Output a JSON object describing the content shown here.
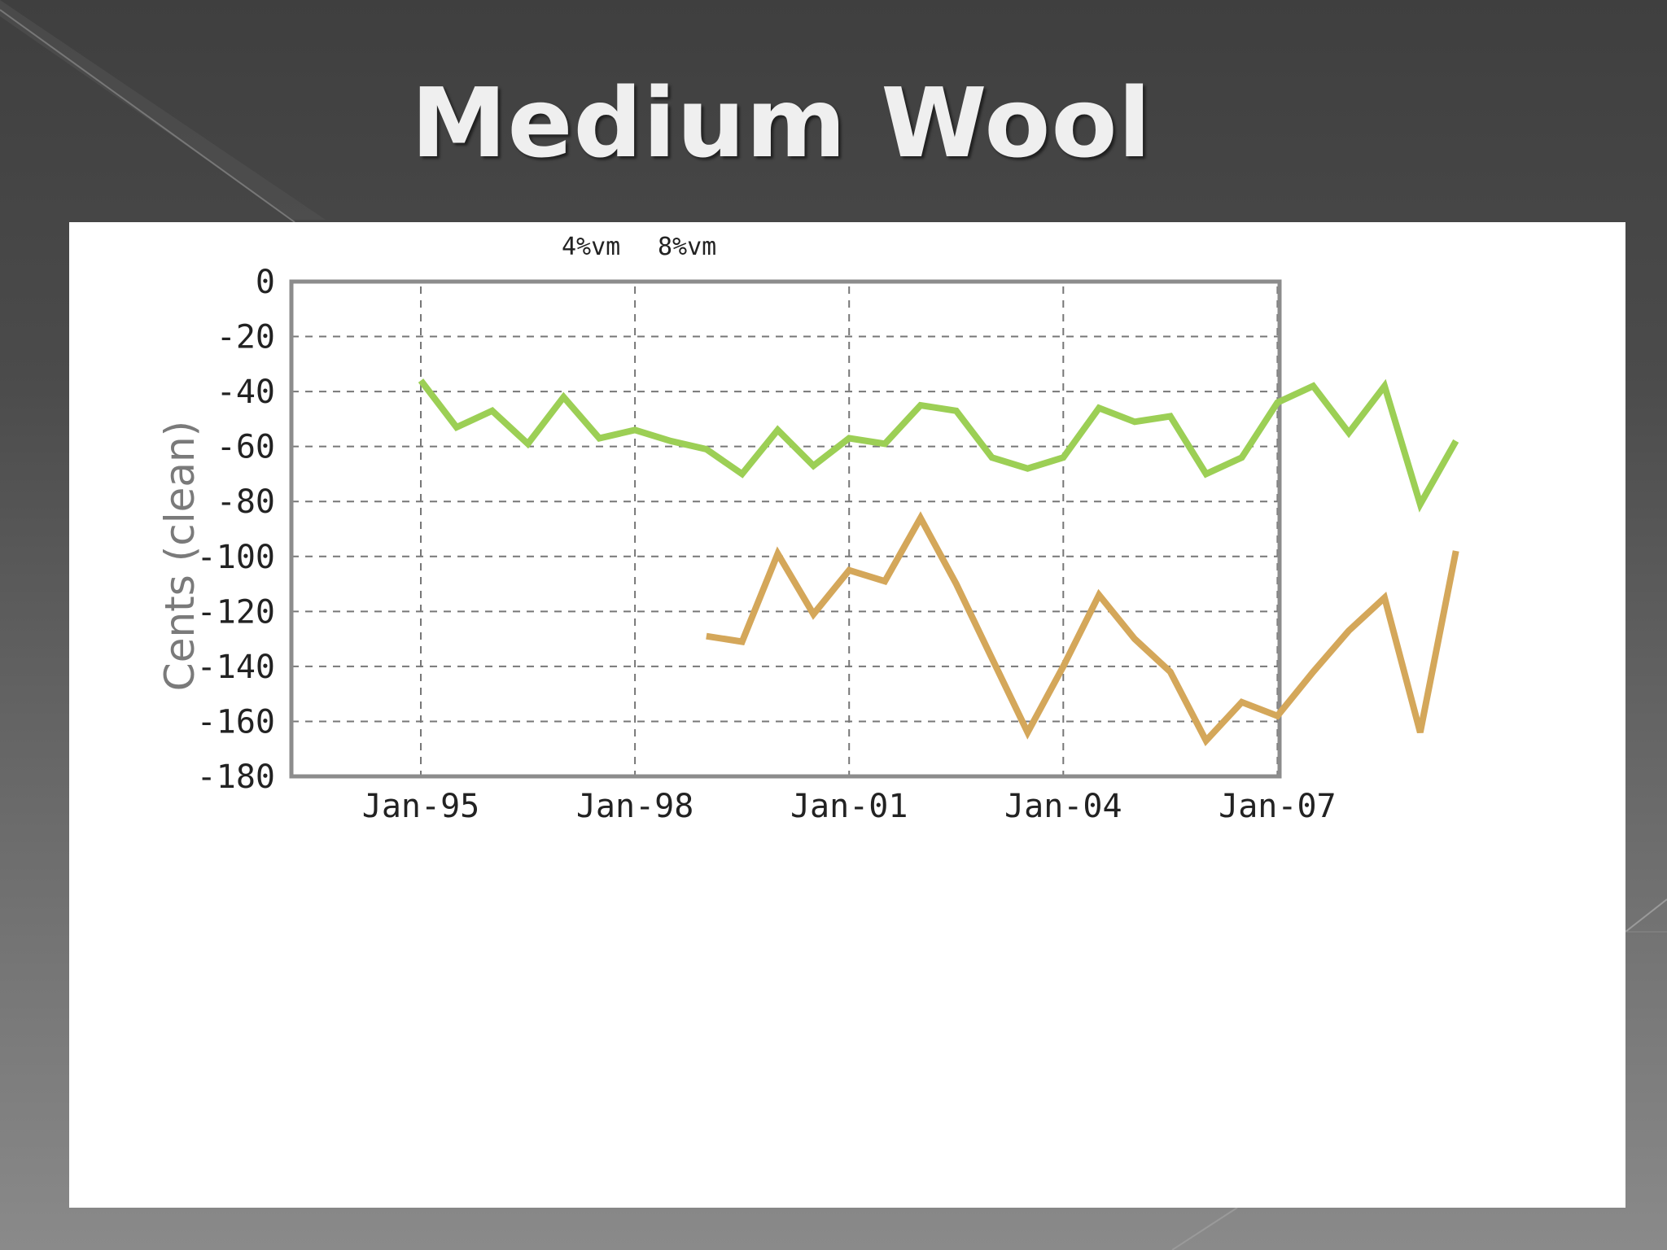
{
  "slide": {
    "title": "Medium Wool"
  },
  "chart_data": {
    "type": "line",
    "title": "",
    "xlabel": "",
    "ylabel": "Cents (clean)",
    "ylim": [
      -180,
      0
    ],
    "yticks": [
      0,
      -20,
      -40,
      -60,
      -80,
      -100,
      -120,
      -140,
      -160,
      -180
    ],
    "xticks": [
      "Jan-95",
      "Jan-98",
      "Jan-01",
      "Jan-04",
      "Jan-07"
    ],
    "x_unit": "half-year periods starting Jan-95",
    "grid": true,
    "legend_position": "top-center",
    "colors": {
      "4%vm": "#9ccf55",
      "8%vm": "#d4a75a"
    },
    "x": [
      "Jan-95",
      "Jul-95",
      "Jan-96",
      "Jul-96",
      "Jan-97",
      "Jul-97",
      "Jan-98",
      "Jul-98",
      "Jan-99",
      "Jul-99",
      "Jan-00",
      "Jul-00",
      "Jan-01",
      "Jul-01",
      "Jan-02",
      "Jul-02",
      "Jan-03",
      "Jul-03",
      "Jan-04",
      "Jul-04",
      "Jan-05",
      "Jul-05",
      "Jan-06",
      "Jul-06",
      "Jan-07",
      "Jul-07",
      "Jan-08",
      "Jul-08",
      "Jan-09",
      "Jul-09",
      "Jan-10"
    ],
    "series": [
      {
        "name": "4%vm",
        "values": [
          -36,
          -53,
          -47,
          -59,
          -42,
          -57,
          -54,
          -58,
          -61,
          -70,
          -54,
          -67,
          -57,
          -59,
          -45,
          -47,
          -64,
          -68,
          -64,
          -46,
          -51,
          -49,
          -70,
          -64,
          -44,
          -38,
          -55,
          -38,
          -81,
          -58,
          null
        ]
      },
      {
        "name": "8%vm",
        "values": [
          null,
          null,
          null,
          null,
          null,
          null,
          null,
          null,
          -129,
          -131,
          -99,
          -121,
          -105,
          -109,
          -86,
          -110,
          -137,
          -164,
          -140,
          -114,
          -130,
          -142,
          -167,
          -153,
          -158,
          -142,
          -127,
          -115,
          -164,
          -98,
          null
        ]
      }
    ]
  }
}
